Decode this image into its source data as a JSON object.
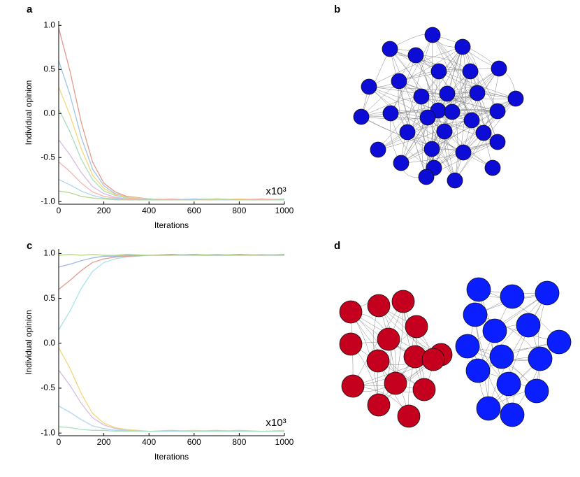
{
  "chart_data": [
    {
      "type": "line",
      "panel": "a",
      "xlabel": "Iterations",
      "ylabel": "Individual opinion",
      "annotation": "x10³",
      "x": [
        0,
        50,
        100,
        150,
        200,
        250,
        300,
        400,
        500,
        600,
        700,
        800,
        900,
        1000
      ],
      "xlim": [
        0,
        1000
      ],
      "ylim": [
        -1.03,
        1.05
      ],
      "xticks": [
        0,
        200,
        400,
        600,
        800,
        1000
      ],
      "yticks": [
        {
          "value": -1,
          "label": "-1.0"
        },
        -0.5,
        {
          "value": 0,
          "label": "0.0"
        },
        0.5,
        {
          "value": 1,
          "label": "1.0"
        }
      ],
      "series": [
        {
          "color": "#e8998d",
          "values": [
            0.97,
            0.48,
            -0.1,
            -0.55,
            -0.79,
            -0.89,
            -0.94,
            -0.97,
            -0.98,
            -0.97,
            -0.98,
            -0.98,
            -0.97,
            -0.98
          ]
        },
        {
          "color": "#9fc5e8",
          "values": [
            0.6,
            0.21,
            -0.27,
            -0.63,
            -0.82,
            -0.91,
            -0.95,
            -0.97,
            -0.98,
            -0.98,
            -0.97,
            -0.98,
            -0.98,
            -0.98
          ]
        },
        {
          "color": "#f4d77a",
          "values": [
            0.3,
            -0.02,
            -0.4,
            -0.7,
            -0.85,
            -0.92,
            -0.95,
            -0.97,
            -0.98,
            -0.98,
            -0.98,
            -0.97,
            -0.98,
            -0.98
          ]
        },
        {
          "color": "#a9dfbf",
          "values": [
            0.05,
            -0.21,
            -0.52,
            -0.75,
            -0.88,
            -0.93,
            -0.96,
            -0.97,
            -0.98,
            -0.97,
            -0.98,
            -0.98,
            -0.98,
            -0.97
          ]
        },
        {
          "color": "#d7bde2",
          "values": [
            -0.3,
            -0.47,
            -0.67,
            -0.83,
            -0.91,
            -0.95,
            -0.97,
            -0.98,
            -0.98,
            -0.98,
            -0.97,
            -0.98,
            -0.98,
            -0.98
          ]
        },
        {
          "color": "#f5b7b1",
          "values": [
            -0.55,
            -0.66,
            -0.79,
            -0.89,
            -0.94,
            -0.96,
            -0.97,
            -0.98,
            -0.97,
            -0.98,
            -0.98,
            -0.98,
            -0.97,
            -0.98
          ]
        },
        {
          "color": "#aed6f1",
          "values": [
            -0.75,
            -0.81,
            -0.88,
            -0.93,
            -0.96,
            -0.97,
            -0.98,
            -0.98,
            -0.98,
            -0.97,
            -0.98,
            -0.98,
            -0.98,
            -0.98
          ]
        },
        {
          "color": "#b4d88a",
          "values": [
            -0.88,
            -0.9,
            -0.94,
            -0.96,
            -0.97,
            -0.98,
            -0.98,
            -0.98,
            -0.98,
            -0.98,
            -0.97,
            -0.98,
            -0.98,
            -0.98
          ]
        }
      ]
    },
    {
      "type": "line",
      "panel": "c",
      "xlabel": "Iterations",
      "ylabel": "Individual opinion",
      "annotation": "x10³",
      "x": [
        0,
        50,
        100,
        150,
        200,
        250,
        300,
        400,
        500,
        600,
        700,
        800,
        900,
        1000
      ],
      "xlim": [
        0,
        1000
      ],
      "ylim": [
        -1.03,
        1.05
      ],
      "xticks": [
        0,
        200,
        400,
        600,
        800,
        1000
      ],
      "yticks": [
        {
          "value": -1,
          "label": "-1.0"
        },
        -0.5,
        {
          "value": 0,
          "label": "0.0"
        },
        0.5,
        {
          "value": 1,
          "label": "1.0"
        }
      ],
      "series": [
        {
          "color": "#a9e4e8",
          "values": [
            0.15,
            0.36,
            0.61,
            0.8,
            0.9,
            0.94,
            0.96,
            0.98,
            0.98,
            0.99,
            0.98,
            0.98,
            0.99,
            0.98
          ]
        },
        {
          "color": "#e8998d",
          "values": [
            0.6,
            0.7,
            0.81,
            0.9,
            0.94,
            0.96,
            0.97,
            0.98,
            0.99,
            0.98,
            0.98,
            0.99,
            0.98,
            0.98
          ]
        },
        {
          "color": "#9fb8e8",
          "values": [
            0.85,
            0.88,
            0.92,
            0.95,
            0.97,
            0.97,
            0.98,
            0.98,
            0.98,
            0.99,
            0.98,
            0.98,
            0.98,
            0.99
          ]
        },
        {
          "color": "#b4d88a",
          "values": [
            0.98,
            0.99,
            0.98,
            0.99,
            0.98,
            0.98,
            0.99,
            0.98,
            0.98,
            0.98,
            0.99,
            0.98,
            0.98,
            0.98
          ]
        },
        {
          "color": "#f4d77a",
          "values": [
            -0.05,
            -0.28,
            -0.56,
            -0.78,
            -0.89,
            -0.94,
            -0.96,
            -0.98,
            -0.98,
            -0.97,
            -0.98,
            -0.98,
            -0.98,
            -0.97
          ]
        },
        {
          "color": "#d7bde2",
          "values": [
            -0.3,
            -0.47,
            -0.67,
            -0.83,
            -0.91,
            -0.95,
            -0.97,
            -0.98,
            -0.98,
            -0.98,
            -0.97,
            -0.98,
            -0.98,
            -0.98
          ]
        },
        {
          "color": "#aed6f1",
          "values": [
            -0.7,
            -0.77,
            -0.85,
            -0.92,
            -0.95,
            -0.97,
            -0.97,
            -0.98,
            -0.98,
            -0.98,
            -0.98,
            -0.97,
            -0.98,
            -0.98
          ]
        },
        {
          "color": "#a9dfbf",
          "values": [
            -0.93,
            -0.94,
            -0.96,
            -0.97,
            -0.97,
            -0.98,
            -0.98,
            -0.98,
            -0.97,
            -0.98,
            -0.98,
            -0.98,
            -0.98,
            -0.98
          ]
        }
      ]
    }
  ],
  "network_panels": [
    {
      "label": "b"
    },
    {
      "label": "d"
    }
  ]
}
